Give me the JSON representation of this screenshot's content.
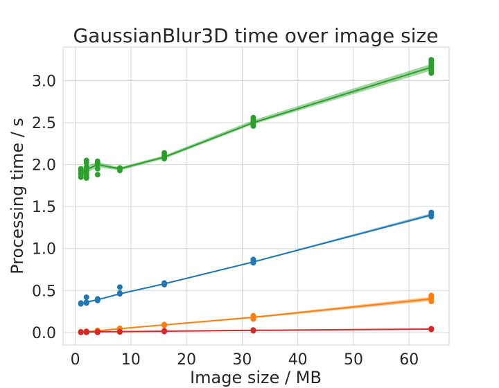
{
  "chart_data": {
    "type": "line",
    "title": "GaussianBlur3D time over image size",
    "xlabel": "Image size / MB",
    "ylabel": "Processing time / s",
    "xlim": [
      -2.2,
      67.2
    ],
    "ylim": [
      -0.15,
      3.4
    ],
    "xticks": [
      0,
      10,
      20,
      30,
      40,
      50,
      60
    ],
    "yticks": [
      0.0,
      0.5,
      1.0,
      1.5,
      2.0,
      2.5,
      3.0
    ],
    "xtick_labels": [
      "0",
      "10",
      "20",
      "30",
      "40",
      "50",
      "60"
    ],
    "ytick_labels": [
      "0.0",
      "0.5",
      "1.0",
      "1.5",
      "2.0",
      "2.5",
      "3.0"
    ],
    "grid": true,
    "legend": "none",
    "x": [
      1,
      2,
      4,
      8,
      16,
      32,
      64
    ],
    "series": [
      {
        "color": "#2ca02c",
        "mean": [
          1.89,
          1.94,
          2.0,
          1.95,
          2.09,
          2.5,
          3.16
        ],
        "ci_low": [
          1.86,
          1.9,
          1.97,
          1.93,
          2.07,
          2.48,
          3.12
        ],
        "ci_high": [
          1.92,
          1.99,
          2.03,
          1.97,
          2.11,
          2.53,
          3.2
        ],
        "points": [
          [
            1,
            1.85
          ],
          [
            1,
            1.88
          ],
          [
            1,
            1.9
          ],
          [
            1,
            1.93
          ],
          [
            1,
            1.95
          ],
          [
            2,
            1.84
          ],
          [
            2,
            1.87
          ],
          [
            2,
            1.9
          ],
          [
            2,
            1.93
          ],
          [
            2,
            1.97
          ],
          [
            2,
            2.02
          ],
          [
            2,
            2.05
          ],
          [
            4,
            1.88
          ],
          [
            4,
            1.95
          ],
          [
            4,
            2.0
          ],
          [
            4,
            2.02
          ],
          [
            4,
            2.04
          ],
          [
            8,
            1.93
          ],
          [
            8,
            1.95
          ],
          [
            8,
            1.96
          ],
          [
            16,
            2.07
          ],
          [
            16,
            2.09
          ],
          [
            16,
            2.11
          ],
          [
            16,
            2.14
          ],
          [
            32,
            2.46
          ],
          [
            32,
            2.48
          ],
          [
            32,
            2.5
          ],
          [
            32,
            2.52
          ],
          [
            32,
            2.54
          ],
          [
            32,
            2.56
          ],
          [
            64,
            3.09
          ],
          [
            64,
            3.12
          ],
          [
            64,
            3.14
          ],
          [
            64,
            3.17
          ],
          [
            64,
            3.2
          ],
          [
            64,
            3.22
          ],
          [
            64,
            3.25
          ]
        ]
      },
      {
        "color": "#1f77b4",
        "mean": [
          0.35,
          0.36,
          0.39,
          0.46,
          0.58,
          0.84,
          1.4
        ],
        "ci_low": [
          0.345,
          0.35,
          0.385,
          0.455,
          0.575,
          0.835,
          1.385
        ],
        "ci_high": [
          0.355,
          0.375,
          0.395,
          0.47,
          0.585,
          0.85,
          1.42
        ],
        "points": [
          [
            1,
            0.34
          ],
          [
            1,
            0.35
          ],
          [
            2,
            0.35
          ],
          [
            2,
            0.36
          ],
          [
            2,
            0.42
          ],
          [
            4,
            0.38
          ],
          [
            4,
            0.39
          ],
          [
            4,
            0.4
          ],
          [
            8,
            0.46
          ],
          [
            8,
            0.47
          ],
          [
            8,
            0.54
          ],
          [
            16,
            0.57
          ],
          [
            16,
            0.58
          ],
          [
            16,
            0.59
          ],
          [
            32,
            0.83
          ],
          [
            32,
            0.84
          ],
          [
            32,
            0.85
          ],
          [
            32,
            0.87
          ],
          [
            64,
            1.38
          ],
          [
            64,
            1.4
          ],
          [
            64,
            1.42
          ],
          [
            64,
            1.43
          ]
        ]
      },
      {
        "color": "#ff7f0e",
        "mean": [
          0.005,
          0.01,
          0.02,
          0.045,
          0.09,
          0.18,
          0.4
        ],
        "ci_low": [
          0.0,
          0.005,
          0.015,
          0.04,
          0.085,
          0.17,
          0.375
        ],
        "ci_high": [
          0.01,
          0.015,
          0.025,
          0.05,
          0.095,
          0.19,
          0.425
        ],
        "points": [
          [
            1,
            0.0
          ],
          [
            1,
            0.01
          ],
          [
            2,
            0.01
          ],
          [
            2,
            0.015
          ],
          [
            4,
            0.015
          ],
          [
            4,
            0.02
          ],
          [
            4,
            0.025
          ],
          [
            8,
            0.04
          ],
          [
            8,
            0.05
          ],
          [
            16,
            0.085
          ],
          [
            16,
            0.095
          ],
          [
            32,
            0.16
          ],
          [
            32,
            0.18
          ],
          [
            32,
            0.2
          ],
          [
            64,
            0.37
          ],
          [
            64,
            0.4
          ],
          [
            64,
            0.42
          ],
          [
            64,
            0.44
          ]
        ]
      },
      {
        "color": "#d62728",
        "mean": [
          0.005,
          0.005,
          0.008,
          0.01,
          0.015,
          0.025,
          0.04
        ],
        "ci_low": [
          0.003,
          0.003,
          0.006,
          0.008,
          0.013,
          0.022,
          0.036
        ],
        "ci_high": [
          0.007,
          0.007,
          0.01,
          0.012,
          0.017,
          0.028,
          0.044
        ],
        "points": [
          [
            1,
            0.0
          ],
          [
            1,
            0.005
          ],
          [
            2,
            0.0
          ],
          [
            2,
            0.005
          ],
          [
            2,
            0.01
          ],
          [
            4,
            0.0
          ],
          [
            4,
            0.01
          ],
          [
            8,
            0.005
          ],
          [
            8,
            0.01
          ],
          [
            16,
            0.01
          ],
          [
            16,
            0.02
          ],
          [
            32,
            0.02
          ],
          [
            32,
            0.025
          ],
          [
            32,
            0.03
          ],
          [
            64,
            0.035
          ],
          [
            64,
            0.04
          ],
          [
            64,
            0.045
          ]
        ]
      }
    ]
  }
}
